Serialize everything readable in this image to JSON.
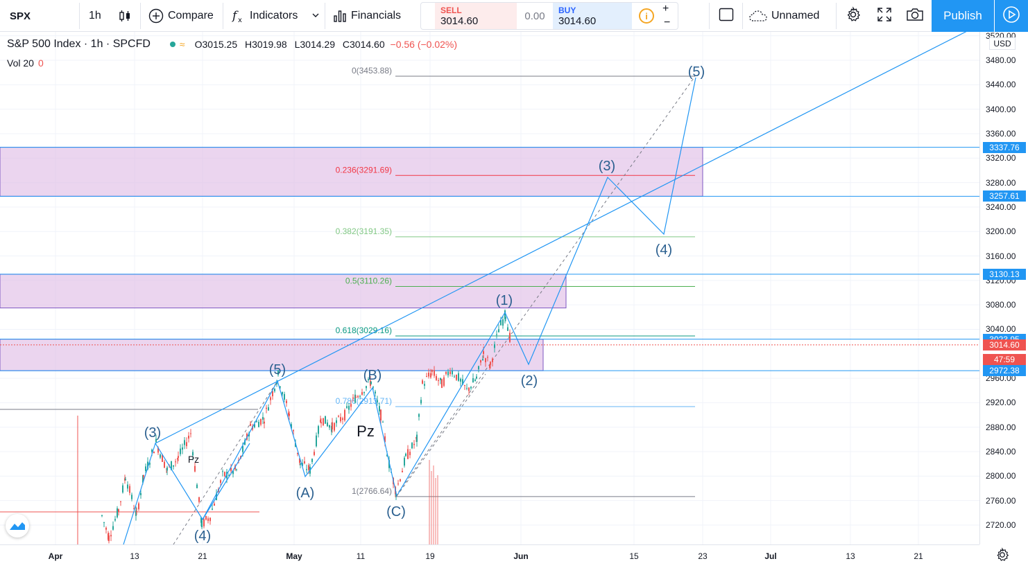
{
  "toolbar": {
    "symbol": "SPX",
    "interval": "1h",
    "compare_label": "Compare",
    "indicators_label": "Indicators",
    "financials_label": "Financials",
    "sell_label": "SELL",
    "sell_price_main": "3014.",
    "sell_price_small": "60",
    "spread": "0.00",
    "buy_label": "BUY",
    "buy_price_main": "3014.",
    "buy_price_small": "60",
    "qty_plus": "+",
    "qty_minus": "−",
    "layout_name": "Unnamed",
    "publish_label": "Publish"
  },
  "legend": {
    "title": "S&P 500 Index · 1h · SPCFD",
    "open": "O3015.25",
    "high": "H3019.98",
    "low": "L3014.29",
    "close": "C3014.60",
    "change": "−0.56 (−0.02%)",
    "volume_label": "Vol 20",
    "volume_value": "0"
  },
  "price_axis": {
    "currency": "USD",
    "ticks": [
      "3520.00",
      "3480.00",
      "3440.00",
      "3400.00",
      "3360.00",
      "3320.00",
      "3280.00",
      "3240.00",
      "3200.00",
      "3160.00",
      "3120.00",
      "3080.00",
      "3040.00",
      "2960.00",
      "2920.00",
      "2880.00",
      "2840.00",
      "2800.00",
      "2760.00",
      "2720.00"
    ],
    "tags": [
      {
        "label": "3337.76",
        "price": 3337.76,
        "color": "#2196f3"
      },
      {
        "label": "3257.61",
        "price": 3257.61,
        "color": "#2196f3"
      },
      {
        "label": "3130.13",
        "price": 3130.13,
        "color": "#2196f3"
      },
      {
        "label": "3023.95",
        "price": 3023.95,
        "color": "#2196f3"
      },
      {
        "label": "3014.60",
        "price": 3014.6,
        "color": "#ef5350"
      },
      {
        "label": "47:59",
        "price": 2991,
        "color": "#ef5350"
      },
      {
        "label": "2972.38",
        "price": 2972.38,
        "color": "#2196f3"
      }
    ]
  },
  "time_axis": {
    "ticks": [
      {
        "label": "Apr",
        "bold": true
      },
      {
        "label": "13",
        "bold": false
      },
      {
        "label": "21",
        "bold": false
      },
      {
        "label": "May",
        "bold": true
      },
      {
        "label": "11",
        "bold": false
      },
      {
        "label": "19",
        "bold": false
      },
      {
        "label": "Jun",
        "bold": true
      },
      {
        "label": "15",
        "bold": false
      },
      {
        "label": "23",
        "bold": false
      },
      {
        "label": "Jul",
        "bold": true
      },
      {
        "label": "13",
        "bold": false
      },
      {
        "label": "21",
        "bold": false
      }
    ]
  },
  "fib_levels": [
    {
      "label": "0(3453.88)",
      "price": 3453.88,
      "color": "#787b86"
    },
    {
      "label": "0.236(3291.69)",
      "price": 3291.69,
      "color": "#f23645"
    },
    {
      "label": "0.382(3191.35)",
      "price": 3191.35,
      "color": "#81c784"
    },
    {
      "label": "0.5(3110.26)",
      "price": 3110.26,
      "color": "#4caf50"
    },
    {
      "label": "0.618(3029.16)",
      "price": 3029.16,
      "color": "#089981"
    },
    {
      "label": "0.786(2913.71)",
      "price": 2913.71,
      "color": "#64b5f6"
    },
    {
      "label": "1(2766.64)",
      "price": 2766.64,
      "color": "#787b86"
    }
  ],
  "wave_labels": [
    "(3)",
    "(4)",
    "(5)",
    "(A)",
    "(B)",
    "(C)",
    "(1)",
    "(2)",
    "(3)",
    "(4)",
    "(5)"
  ],
  "annotations": [
    "Pz",
    "Pz"
  ],
  "colors": {
    "up": "#26a69a",
    "down": "#ef5350",
    "wave": "#2196f3",
    "zone": "#e1bee7"
  },
  "icons": [
    "candlestick-icon",
    "plus-circle-icon",
    "fx-icon",
    "chevron-down-icon",
    "bar-chart-icon",
    "info-icon",
    "rectangle-icon",
    "cloud-icon",
    "gear-icon",
    "fullscreen-icon",
    "camera-icon",
    "play-icon",
    "tradingview-logo-icon"
  ]
}
